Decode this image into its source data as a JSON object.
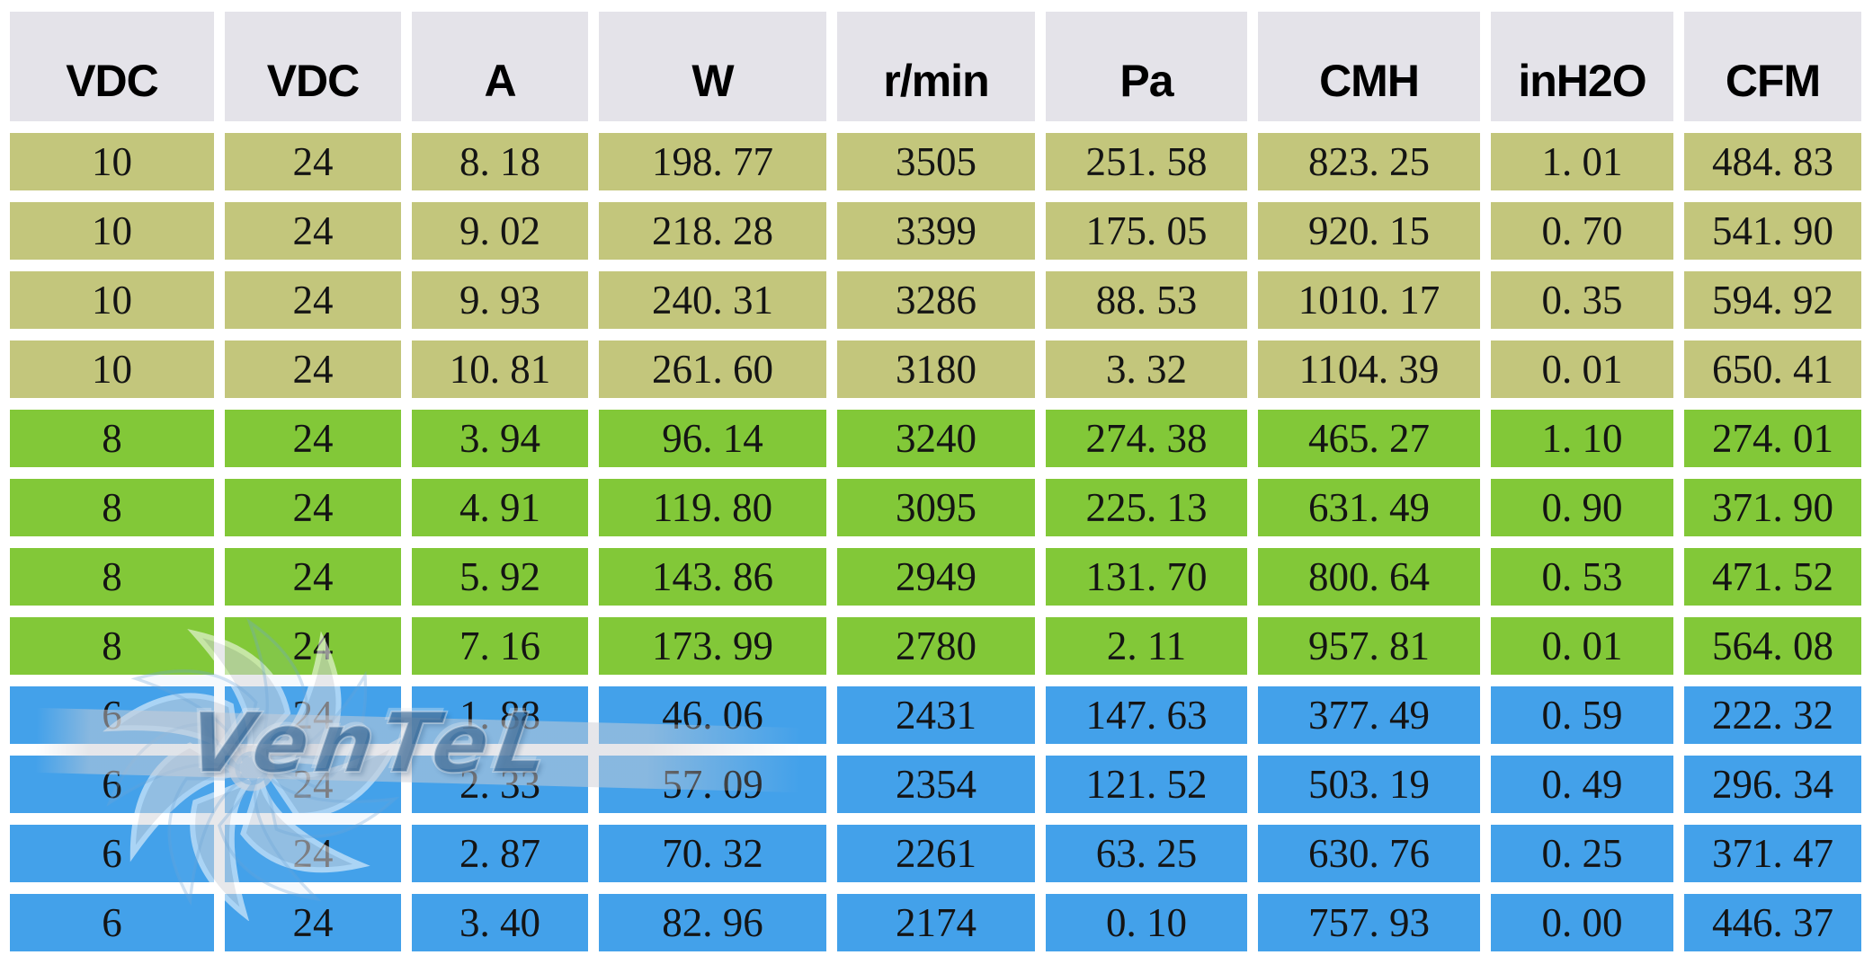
{
  "colors": {
    "header_bg": "#e4e3e9",
    "olive": "#c3c67c",
    "green": "#82c838",
    "blue": "#43a1ea",
    "page_bg": "#ffffff",
    "watermark_blue": "#2a5c8c"
  },
  "watermark": {
    "text": "VenTeL"
  },
  "table": {
    "headers": [
      "VDC",
      "VDC",
      "A",
      "W",
      "r/min",
      "Pa",
      "CMH",
      "inH2O",
      "CFM"
    ],
    "rows": [
      {
        "group": "olive",
        "cells": [
          "10",
          "24",
          "8. 18",
          "198. 77",
          "3505",
          "251. 58",
          "823. 25",
          "1. 01",
          "484. 83"
        ]
      },
      {
        "group": "olive",
        "cells": [
          "10",
          "24",
          "9. 02",
          "218. 28",
          "3399",
          "175. 05",
          "920. 15",
          "0. 70",
          "541. 90"
        ]
      },
      {
        "group": "olive",
        "cells": [
          "10",
          "24",
          "9. 93",
          "240. 31",
          "3286",
          "88. 53",
          "1010. 17",
          "0. 35",
          "594. 92"
        ]
      },
      {
        "group": "olive",
        "cells": [
          "10",
          "24",
          "10. 81",
          "261. 60",
          "3180",
          "3. 32",
          "1104. 39",
          "0. 01",
          "650. 41"
        ]
      },
      {
        "group": "green",
        "cells": [
          "8",
          "24",
          "3. 94",
          "96. 14",
          "3240",
          "274. 38",
          "465. 27",
          "1. 10",
          "274. 01"
        ]
      },
      {
        "group": "green",
        "cells": [
          "8",
          "24",
          "4. 91",
          "119. 80",
          "3095",
          "225. 13",
          "631. 49",
          "0. 90",
          "371. 90"
        ]
      },
      {
        "group": "green",
        "cells": [
          "8",
          "24",
          "5. 92",
          "143. 86",
          "2949",
          "131. 70",
          "800. 64",
          "0. 53",
          "471. 52"
        ]
      },
      {
        "group": "green",
        "cells": [
          "8",
          "24",
          "7. 16",
          "173. 99",
          "2780",
          "2. 11",
          "957. 81",
          "0. 01",
          "564. 08"
        ]
      },
      {
        "group": "blue",
        "cells": [
          "6",
          "24",
          "1. 88",
          "46. 06",
          "2431",
          "147. 63",
          "377. 49",
          "0. 59",
          "222. 32"
        ]
      },
      {
        "group": "blue",
        "cells": [
          "6",
          "24",
          "2. 33",
          "57. 09",
          "2354",
          "121. 52",
          "503. 19",
          "0. 49",
          "296. 34"
        ]
      },
      {
        "group": "blue",
        "cells": [
          "6",
          "24",
          "2. 87",
          "70. 32",
          "2261",
          "63. 25",
          "630. 76",
          "0. 25",
          "371. 47"
        ]
      },
      {
        "group": "blue",
        "cells": [
          "6",
          "24",
          "3. 40",
          "82. 96",
          "2174",
          "0. 10",
          "757. 93",
          "0. 00",
          "446. 37"
        ]
      }
    ]
  }
}
